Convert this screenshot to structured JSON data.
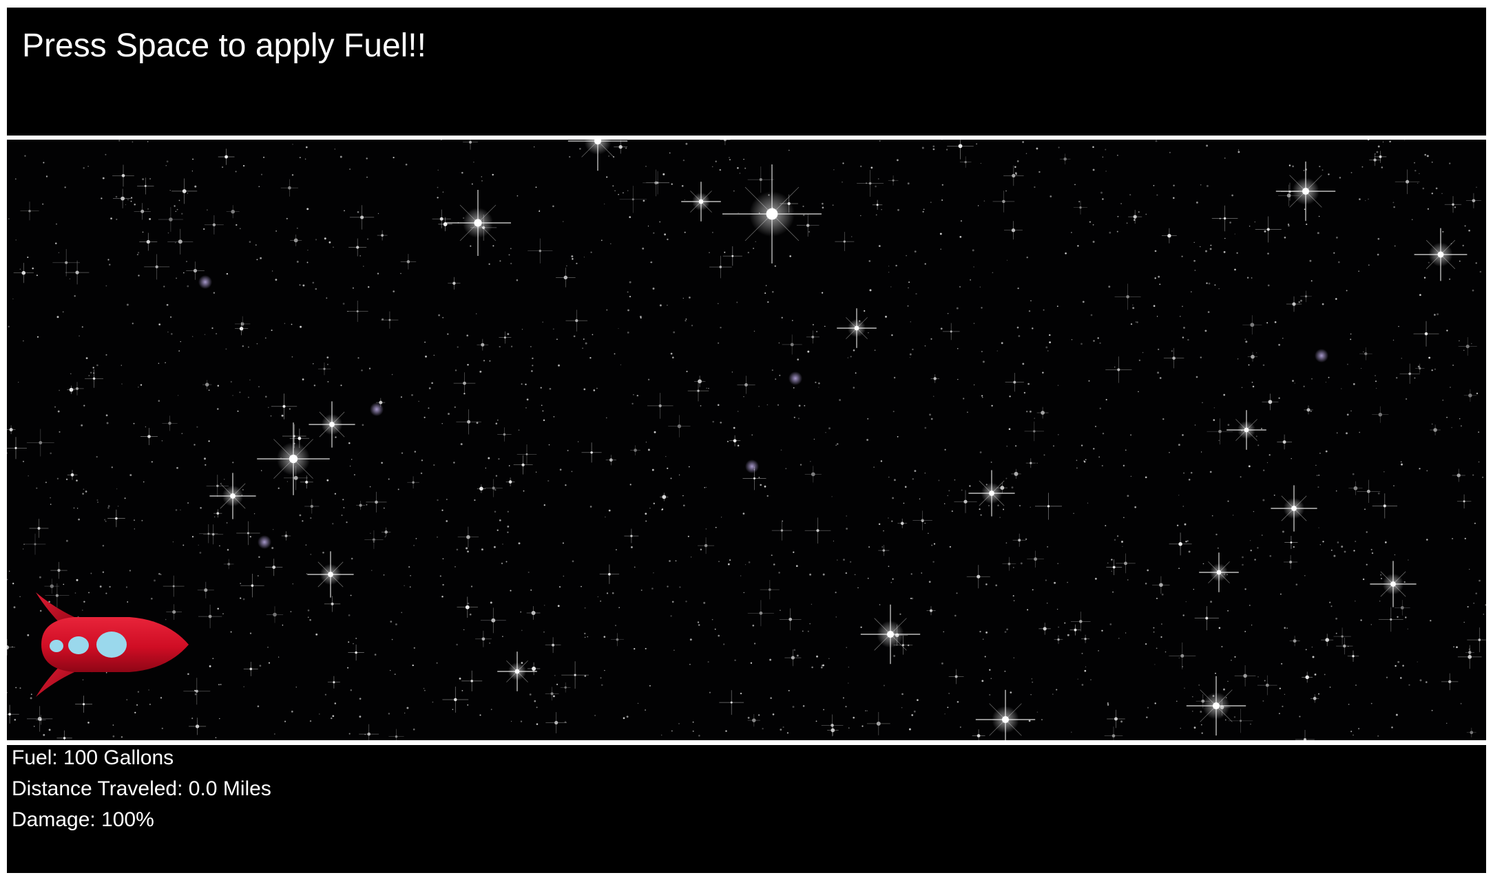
{
  "header": {
    "instruction": "Press Space to apply Fuel!!"
  },
  "game": {
    "background": "starfield",
    "player_icon": "rocket-icon",
    "rocket_colors": {
      "body": "#d9102a",
      "windows": "#9ad8ec"
    }
  },
  "stats": {
    "fuel": "Fuel: 100 Gallons",
    "distance": "Distance Traveled: 0.0 Miles",
    "damage": "Damage: 100%"
  }
}
